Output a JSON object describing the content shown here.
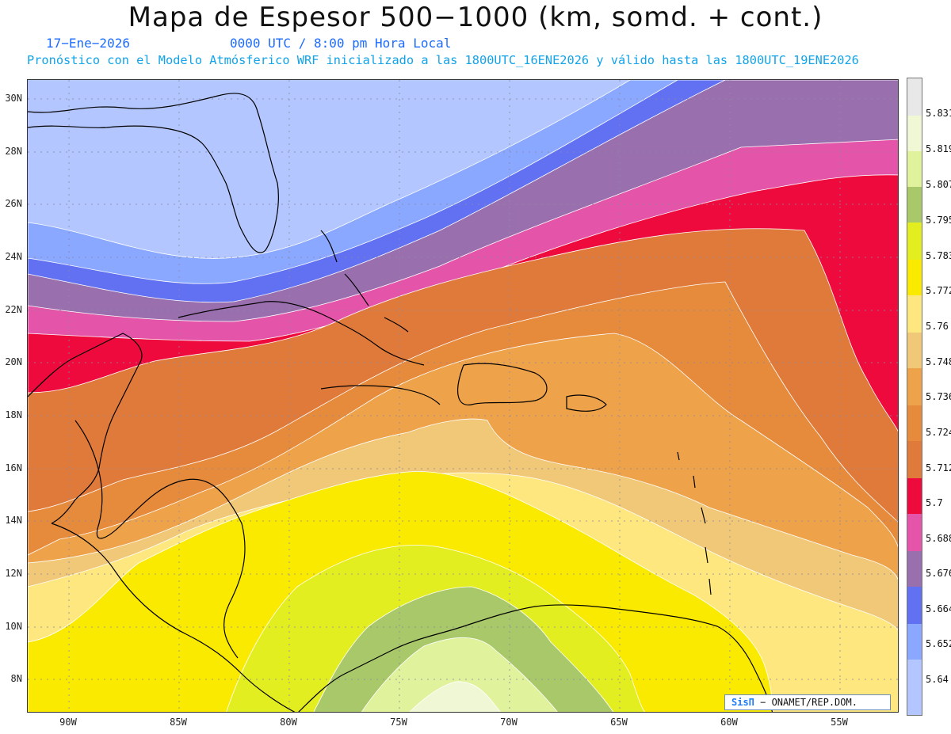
{
  "header": {
    "title": "Mapa de Espesor 500−1000 (km, somd. + cont.)",
    "date": "17−Ene−2026",
    "time": "0000 UTC / 8:00 pm Hora Local",
    "forecast": "Pronóstico con el Modelo Atmósferico WRF inicializado a las 1800UTC_16ENE2026 y válido hasta las  1800UTC_19ENE2026"
  },
  "map": {
    "lat_labels": [
      "30N",
      "28N",
      "26N",
      "24N",
      "22N",
      "20N",
      "18N",
      "16N",
      "14N",
      "12N",
      "10N",
      "8N"
    ],
    "lon_labels": [
      "90W",
      "85W",
      "80W",
      "75W",
      "70W",
      "65W",
      "60W",
      "55W"
    ],
    "lat_range": [
      6.8,
      30.8
    ],
    "lon_range": [
      91.8,
      52.3
    ]
  },
  "legend": {
    "levels": [
      "5.64",
      "5.652",
      "5.664",
      "5.676",
      "5.688",
      "5.7",
      "5.712",
      "5.724",
      "5.736",
      "5.748",
      "5.76",
      "5.772",
      "5.783",
      "5.795",
      "5.807",
      "5.819",
      "5.831"
    ],
    "colors": [
      "#b3c6ff",
      "#8aa8ff",
      "#6271f2",
      "#9a6fae",
      "#e454a8",
      "#ee0a3c",
      "#e07a3a",
      "#e68a3c",
      "#eea24a",
      "#f0c878",
      "#ffe780",
      "#faea00",
      "#e3ee20",
      "#a8c86a",
      "#e0f29c",
      "#f0f7d4",
      "#e8e8e8"
    ]
  },
  "credit": {
    "brand": "SisΠ",
    "text": " − ONAMET/REP.DOM."
  }
}
